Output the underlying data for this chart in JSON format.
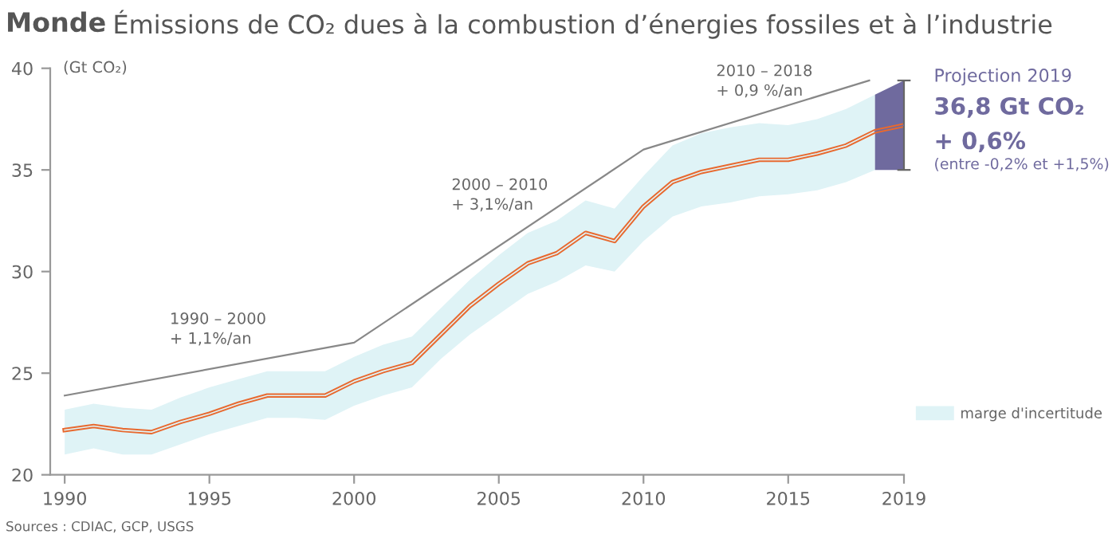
{
  "chart_data": {
    "type": "line",
    "title": "Monde",
    "subtitle": "Émissions de CO₂ dues à la combustion d’énergies fossiles et à l’industrie",
    "ylabel": "(Gt CO₂)",
    "x": [
      1990,
      1991,
      1992,
      1993,
      1994,
      1995,
      1996,
      1997,
      1998,
      1999,
      2000,
      2001,
      2002,
      2003,
      2004,
      2005,
      2006,
      2007,
      2008,
      2009,
      2010,
      2011,
      2012,
      2013,
      2014,
      2015,
      2016,
      2017,
      2018,
      2019
    ],
    "series": [
      {
        "name": "marge d'incertitude",
        "color": "#dff3f6",
        "x": [
          1990,
          1991,
          1992,
          1993,
          1994,
          1995,
          1996,
          1997,
          1998,
          1999,
          2000,
          2001,
          2002,
          2003,
          2004,
          2005,
          2006,
          2007,
          2008,
          2009,
          2010,
          2011,
          2012,
          2013,
          2014,
          2015,
          2016,
          2017,
          2018
        ],
        "values": [
          22.2,
          22.4,
          22.2,
          22.1,
          22.6,
          23.0,
          23.5,
          23.9,
          23.9,
          23.9,
          24.6,
          25.1,
          25.5,
          26.9,
          28.3,
          29.4,
          30.4,
          30.9,
          31.9,
          31.5,
          33.2,
          34.4,
          34.9,
          35.2,
          35.5,
          35.5,
          35.8,
          36.2,
          36.9
        ],
        "upper": [
          23.2,
          23.5,
          23.3,
          23.2,
          23.8,
          24.3,
          24.7,
          25.1,
          25.1,
          25.1,
          25.8,
          26.4,
          26.8,
          28.2,
          29.6,
          30.8,
          31.9,
          32.5,
          33.5,
          33.1,
          34.7,
          36.2,
          36.8,
          37.1,
          37.3,
          37.2,
          37.5,
          38.0,
          38.7
        ],
        "lower": [
          21.0,
          21.3,
          21.0,
          21.0,
          21.5,
          22.0,
          22.4,
          22.8,
          22.8,
          22.7,
          23.4,
          23.9,
          24.3,
          25.7,
          26.9,
          27.9,
          28.9,
          29.5,
          30.3,
          30.0,
          31.5,
          32.7,
          33.2,
          33.4,
          33.7,
          33.8,
          34.0,
          34.4,
          35.0
        ]
      },
      {
        "name": "Projection 2019",
        "color": "#6f6a9e",
        "x": [
          2018,
          2019
        ],
        "values": [
          36.9,
          37.2
        ],
        "upper": [
          38.7,
          39.4
        ],
        "lower": [
          35.0,
          35.0
        ]
      },
      {
        "color": "#888888",
        "x": [
          1990,
          2000,
          2010,
          2017.8
        ],
        "values": [
          23.9,
          26.5,
          36.0,
          39.4
        ]
      },
      {
        "color": "#e8692f",
        "values": [
          22.2,
          22.4,
          22.2,
          22.1,
          22.6,
          23.0,
          23.5,
          23.9,
          23.9,
          23.9,
          24.6,
          25.1,
          25.5,
          26.9,
          28.3,
          29.4,
          30.4,
          30.9,
          31.9,
          31.5,
          33.2,
          34.4,
          34.9,
          35.2,
          35.5,
          35.5,
          35.8,
          36.2,
          36.9,
          37.2
        ],
        "errors": [
          null,
          null,
          null,
          null,
          null,
          null,
          null,
          null,
          null,
          null,
          null,
          null,
          null,
          null,
          null,
          null,
          null,
          null,
          null,
          null,
          null,
          null,
          null,
          null,
          null,
          null,
          null,
          null,
          null,
          [
            35.0,
            39.4
          ]
        ]
      }
    ],
    "annotations": [
      "1990 – 2000\n+ 1,1%/an",
      "2000 – 2010\n+ 3,1%/an",
      "2010 – 2018\n+ 0,9 %/an",
      "36,8 Gt CO₂",
      "+ 0,6%",
      "(entre -0,2% et +1,5%)",
      "Sources : CDIAC, GCP, USGS"
    ],
    "xlim": [
      1989.5,
      2019
    ],
    "xticks": [
      1990,
      1995,
      2000,
      2005,
      2010,
      2015,
      2019
    ],
    "ylim": [
      20,
      40
    ],
    "yticks": [
      20,
      25,
      30,
      35,
      40
    ],
    "grid": false,
    "legend": "right"
  }
}
